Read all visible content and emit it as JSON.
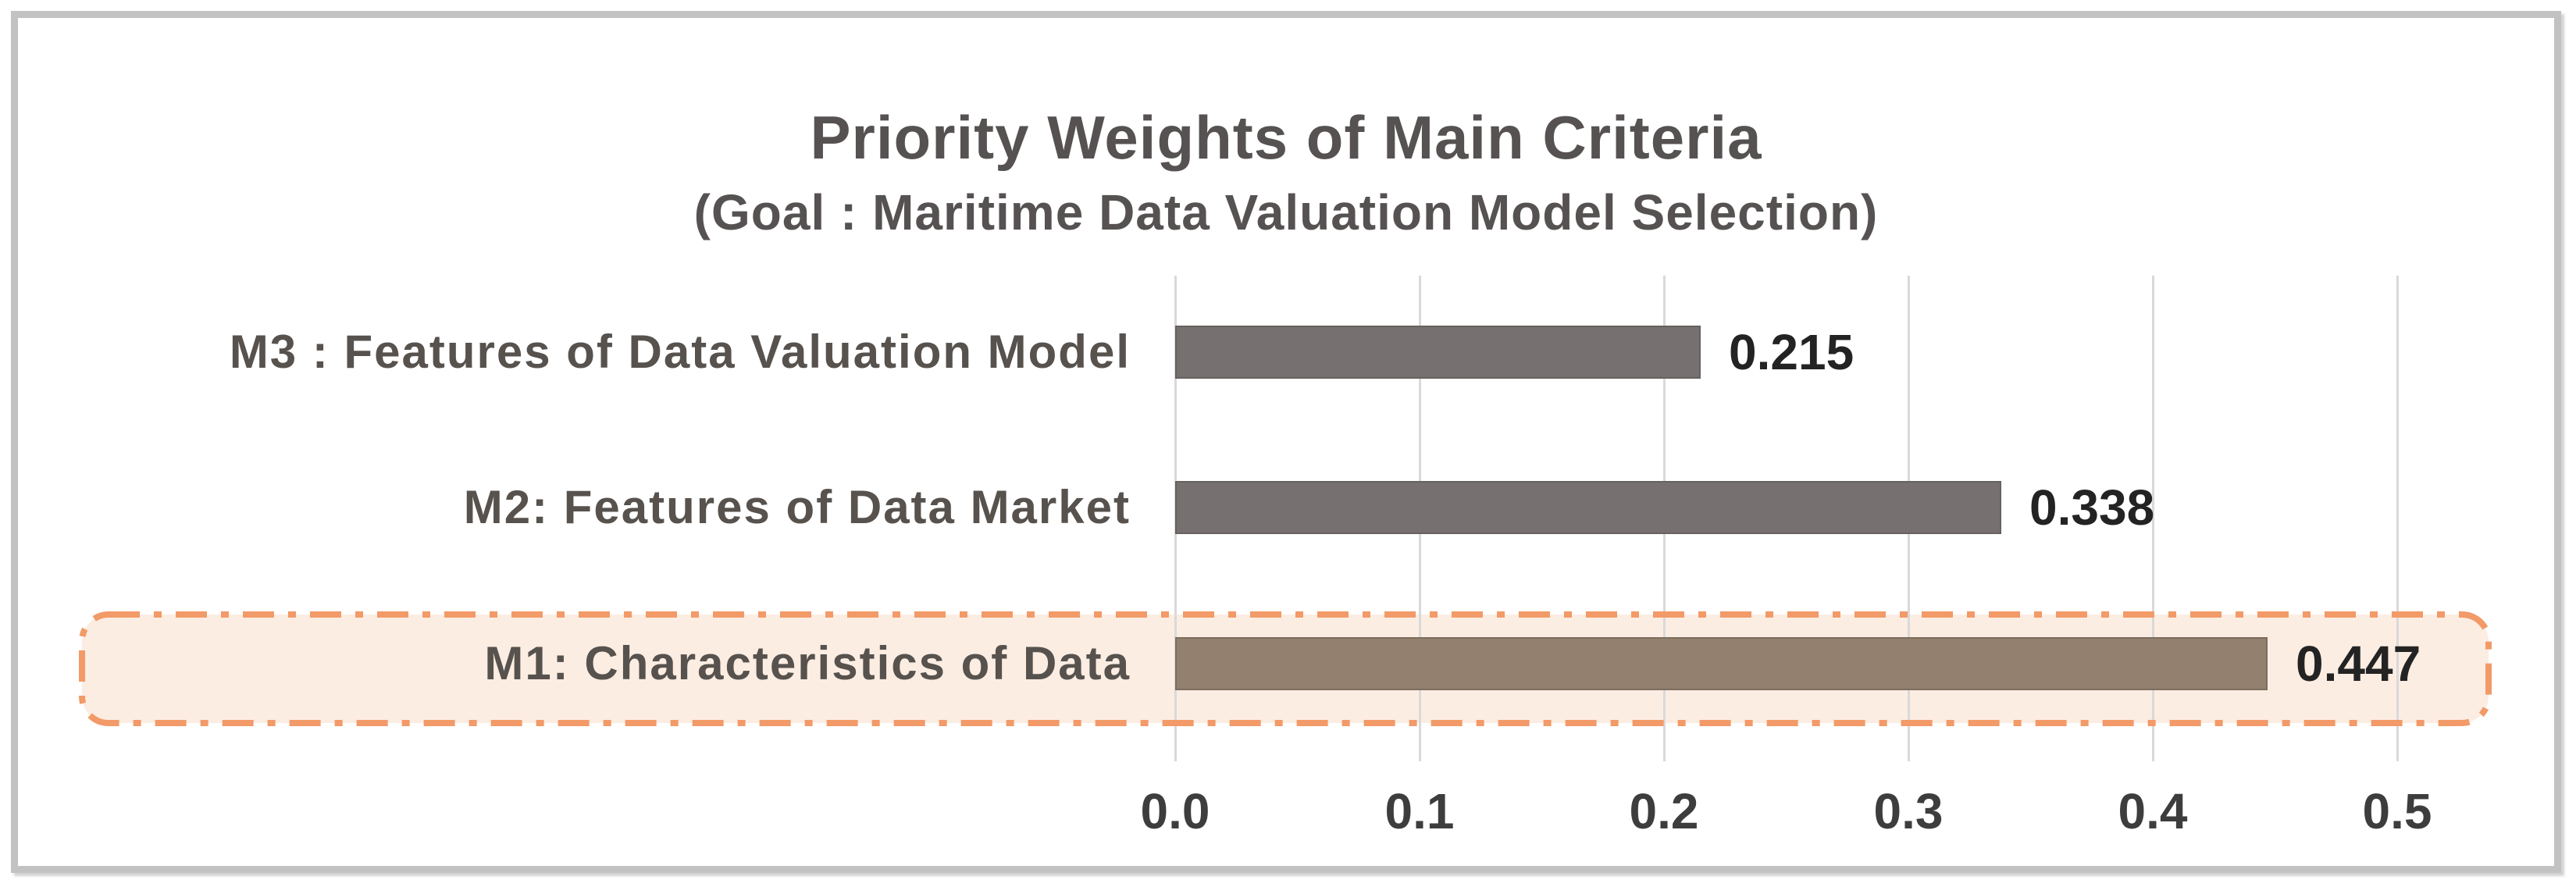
{
  "figure": {
    "title": "Priority Weights of Main Criteria",
    "subtitle": "(Goal : Maritime Data Valuation Model Selection)"
  },
  "chart_data": {
    "type": "bar",
    "orientation": "horizontal",
    "title": "Priority Weights of Main Criteria",
    "subtitle": "(Goal : Maritime Data Valuation Model Selection)",
    "categories_order": "top-to-bottom",
    "categories": [
      "M3 : Features of Data Valuation Model",
      "M2: Features of Data Market",
      "M1: Characteristics of Data"
    ],
    "values": [
      0.215,
      0.338,
      0.447
    ],
    "value_labels": [
      "0.215",
      "0.338",
      "0.447"
    ],
    "xlim": [
      0,
      0.5
    ],
    "x_ticks": [
      "0.0",
      "0.1",
      "0.2",
      "0.3",
      "0.4",
      "0.5"
    ],
    "x_tick_values": [
      0,
      0.1,
      0.2,
      0.3,
      0.4,
      0.5
    ],
    "grid": true,
    "legend": false,
    "highlighted_index": 2,
    "highlighted_category": "M1: Characteristics of Data",
    "colors": {
      "bar_default": "#767070",
      "bar_highlight": "#93806F",
      "highlight_box_fill": "#FCEDE3",
      "highlight_box_border": "#F29A68",
      "gridline": "#D9D9D9",
      "title_text": "#565252",
      "label_text": "#57524D",
      "value_text": "#232323",
      "tick_text": "#3D3D3D",
      "frame_border": "#C2C2C2"
    }
  }
}
